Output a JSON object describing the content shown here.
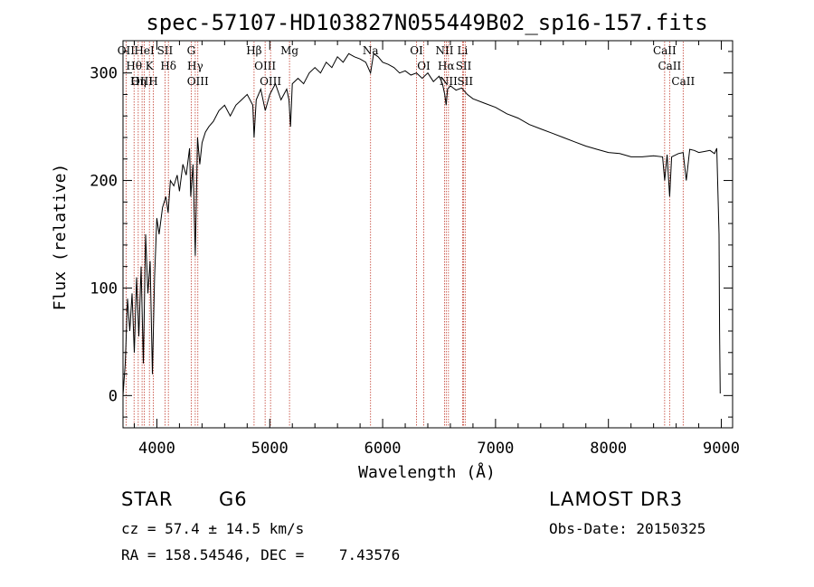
{
  "chart_data": {
    "type": "line",
    "title": "spec-57107-HD103827N055449B02_sp16-157.fits",
    "xlabel": "Wavelength (Å)",
    "ylabel": "Flux (relative)",
    "xlim": [
      3700,
      9100
    ],
    "ylim": [
      -30,
      330
    ],
    "xticks": [
      4000,
      5000,
      6000,
      7000,
      8000,
      9000
    ],
    "xtick_labels": [
      "4000",
      "5000",
      "6000",
      "7000",
      "8000",
      "9000"
    ],
    "yticks": [
      0,
      100,
      200,
      300
    ],
    "ytick_labels": [
      "0",
      "100",
      "200",
      "300"
    ],
    "grid": false,
    "series": [
      {
        "name": "spectrum",
        "x": [
          3700,
          3720,
          3740,
          3760,
          3780,
          3800,
          3820,
          3840,
          3860,
          3880,
          3900,
          3920,
          3940,
          3960,
          3980,
          4000,
          4020,
          4050,
          4080,
          4100,
          4120,
          4150,
          4180,
          4200,
          4230,
          4260,
          4290,
          4300,
          4320,
          4340,
          4360,
          4380,
          4400,
          4430,
          4460,
          4500,
          4550,
          4600,
          4650,
          4700,
          4750,
          4800,
          4850,
          4861,
          4880,
          4920,
          4960,
          5000,
          5050,
          5100,
          5150,
          5170,
          5184,
          5200,
          5250,
          5300,
          5350,
          5400,
          5450,
          5500,
          5550,
          5600,
          5650,
          5700,
          5750,
          5800,
          5850,
          5893,
          5920,
          5960,
          6000,
          6050,
          6100,
          6150,
          6200,
          6250,
          6300,
          6350,
          6400,
          6450,
          6500,
          6530,
          6550,
          6563,
          6575,
          6600,
          6650,
          6700,
          6750,
          6800,
          6900,
          7000,
          7100,
          7200,
          7300,
          7400,
          7500,
          7600,
          7700,
          7800,
          7900,
          8000,
          8100,
          8200,
          8300,
          8400,
          8480,
          8498,
          8520,
          8542,
          8560,
          8620,
          8662,
          8690,
          8720,
          8760,
          8800,
          8850,
          8900,
          8940,
          8960,
          8980,
          8985,
          8990
        ],
        "values": [
          0,
          30,
          90,
          60,
          95,
          40,
          110,
          55,
          120,
          30,
          150,
          95,
          125,
          20,
          110,
          165,
          150,
          175,
          185,
          170,
          200,
          195,
          205,
          190,
          215,
          205,
          230,
          185,
          215,
          130,
          240,
          215,
          235,
          245,
          250,
          255,
          265,
          270,
          260,
          270,
          275,
          280,
          270,
          240,
          275,
          285,
          265,
          280,
          290,
          275,
          285,
          275,
          250,
          290,
          295,
          290,
          300,
          305,
          300,
          310,
          305,
          315,
          310,
          318,
          315,
          313,
          310,
          300,
          318,
          315,
          310,
          308,
          305,
          300,
          302,
          298,
          300,
          295,
          300,
          292,
          297,
          290,
          280,
          270,
          285,
          288,
          284,
          286,
          280,
          276,
          272,
          268,
          262,
          258,
          252,
          248,
          244,
          240,
          236,
          232,
          229,
          226,
          225,
          222,
          222,
          223,
          222,
          200,
          224,
          185,
          222,
          225,
          226,
          200,
          229,
          228,
          226,
          227,
          228,
          225,
          230,
          150,
          60,
          2
        ]
      }
    ],
    "spectral_lines": [
      {
        "name": "Hθ",
        "wavelength": 3798
      },
      {
        "name": "OII",
        "wavelength": 3727
      },
      {
        "name": "OIII",
        "wavelength": 3869
      },
      {
        "name": "HeI",
        "wavelength": 3889
      },
      {
        "name": "Hη",
        "wavelength": 3835
      },
      {
        "name": "K",
        "wavelength": 3934
      },
      {
        "name": "H",
        "wavelength": 3968
      },
      {
        "name": "Hδ",
        "wavelength": 4102
      },
      {
        "name": "SII",
        "wavelength": 4072
      },
      {
        "name": "OIII",
        "wavelength": 4363
      },
      {
        "name": "Hγ",
        "wavelength": 4340
      },
      {
        "name": "G",
        "wavelength": 4304
      },
      {
        "name": "Hβ",
        "wavelength": 4861
      },
      {
        "name": "OIII",
        "wavelength": 4959
      },
      {
        "name": "OIII",
        "wavelength": 5007
      },
      {
        "name": "Mg",
        "wavelength": 5175
      },
      {
        "name": "Na",
        "wavelength": 5893
      },
      {
        "name": "OI",
        "wavelength": 6300
      },
      {
        "name": "OI",
        "wavelength": 6364
      },
      {
        "name": "Hα",
        "wavelength": 6563
      },
      {
        "name": "NII",
        "wavelength": 6548
      },
      {
        "name": "NII",
        "wavelength": 6583
      },
      {
        "name": "SII",
        "wavelength": 6717
      },
      {
        "name": "Li",
        "wavelength": 6708
      },
      {
        "name": "SII",
        "wavelength": 6731
      },
      {
        "name": "CaII",
        "wavelength": 8498
      },
      {
        "name": "CaII",
        "wavelength": 8542
      },
      {
        "name": "CaII",
        "wavelength": 8662
      }
    ]
  },
  "info": {
    "class_label": "STAR",
    "subclass": "G6",
    "survey": "LAMOST DR3",
    "redshift": "cz = 57.4 ± 14.5 km/s",
    "obs_date": "Obs-Date: 20150325",
    "coords": "RA = 158.54546, DEC =    7.43576"
  },
  "colors": {
    "line": "#000000",
    "marker": "#c0392b",
    "background": "#ffffff"
  }
}
